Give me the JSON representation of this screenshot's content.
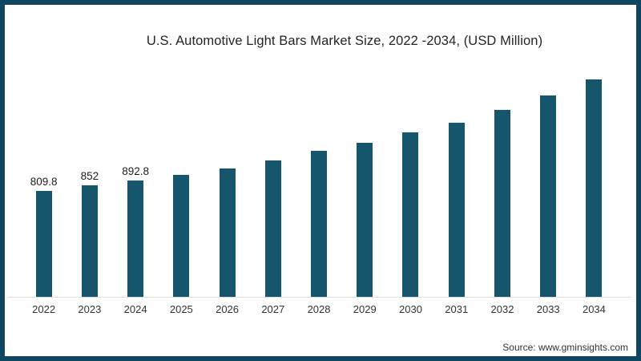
{
  "frame": {
    "border_color": "#0f4660",
    "background_color": "#ffffff"
  },
  "source_note": "Source: www.gminsights.com",
  "chart_data": {
    "type": "bar",
    "title": "U.S. Automotive Light Bars Market Size, 2022 -2034, (USD Million)",
    "categories": [
      "2022",
      "2023",
      "2024",
      "2025",
      "2026",
      "2027",
      "2028",
      "2029",
      "2030",
      "2031",
      "2032",
      "2033",
      "2034"
    ],
    "values": [
      809.8,
      852,
      892.8,
      935,
      985,
      1045,
      1115,
      1180,
      1255,
      1330,
      1430,
      1540,
      1660
    ],
    "data_labels": [
      "809.8",
      "852",
      "892.8",
      "",
      "",
      "",
      "",
      "",
      "",
      "",
      "",
      "",
      ""
    ],
    "bar_color": "#15566c",
    "xlabel": "",
    "ylabel": "",
    "ylim": [
      0,
      1700
    ],
    "grid": false,
    "legend": false,
    "axis_line_color": "#dddddd",
    "label_color": "#1d1d1d",
    "tick_color": "#333333"
  }
}
